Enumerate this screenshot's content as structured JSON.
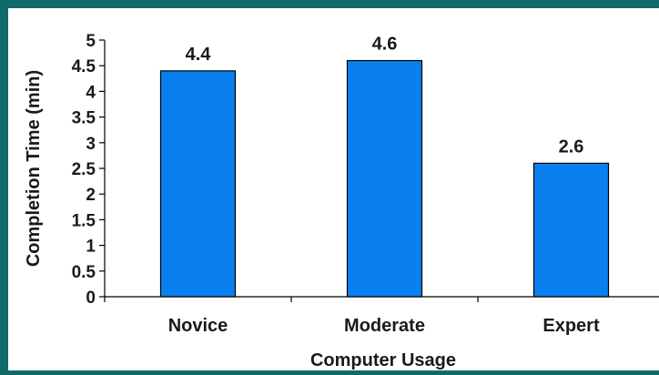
{
  "chart_data": {
    "type": "bar",
    "categories": [
      "Novice",
      "Moderate",
      "Expert"
    ],
    "values": [
      4.4,
      4.6,
      2.6
    ],
    "data_labels": [
      "4.4",
      "4.6",
      "2.6"
    ],
    "xlabel": "Computer Usage",
    "ylabel": "Completion Time (min)",
    "ylim": [
      0,
      5
    ],
    "yticks": [
      "0",
      "0.5",
      "1",
      "1.5",
      "2",
      "2.5",
      "3",
      "3.5",
      "4",
      "4.5",
      "5"
    ],
    "grid": false,
    "legend": "none",
    "colors": {
      "bar": "#0a80f0",
      "bar_border": "#000000",
      "frame": "#0f6b6b",
      "background": "#ffffff"
    }
  }
}
